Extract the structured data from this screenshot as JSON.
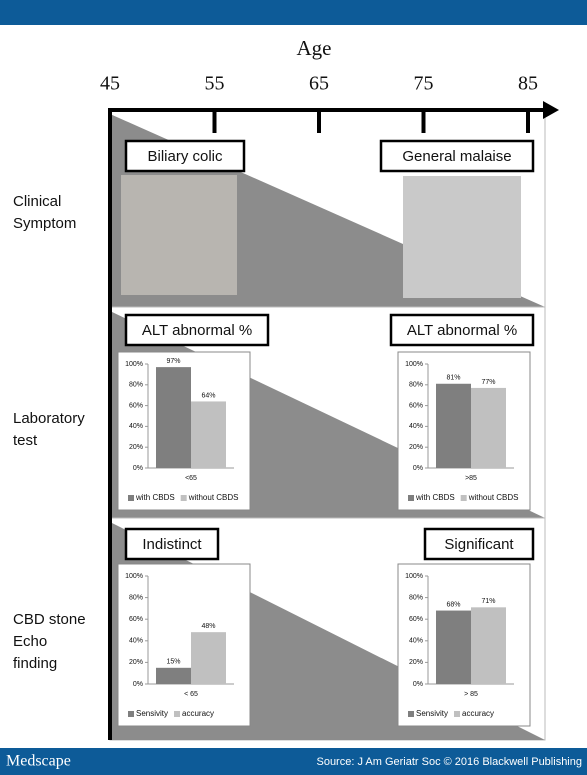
{
  "age_axis": {
    "title": "Age",
    "ticks": [
      45,
      55,
      65,
      75,
      85
    ]
  },
  "rows": [
    {
      "label": [
        "Clinical",
        "Symptom"
      ],
      "left": "Biliary colic",
      "right": "General malaise"
    },
    {
      "label": [
        "Laboratory",
        "test"
      ],
      "left": "ALT abnormal %",
      "right": "ALT abnormal %"
    },
    {
      "label": [
        "CBD stone",
        "Echo",
        "finding"
      ],
      "left": "Indistinct",
      "right": "Significant"
    }
  ],
  "footer": {
    "brand": "Medscape",
    "source": "Source: J Am Geriatr Soc © 2016 Blackwell Publishing"
  },
  "chart_data": [
    {
      "type": "bar",
      "categories": [
        "<65"
      ],
      "ylim": [
        0,
        100
      ],
      "yticks": [
        {
          "value": 0,
          "label": "0%"
        },
        {
          "value": 20,
          "label": "20%"
        },
        {
          "value": 40,
          "label": "40%"
        },
        {
          "value": 60,
          "label": "60%"
        },
        {
          "value": 80,
          "label": "80%"
        },
        {
          "value": 100,
          "label": "100%"
        }
      ],
      "series": [
        {
          "name": "with CBDS",
          "color": "#7f7f7f",
          "values": [
            97
          ],
          "value_labels": [
            "97%"
          ]
        },
        {
          "name": "without CBDS",
          "color": "#c0c0c0",
          "values": [
            64
          ],
          "value_labels": [
            "64%"
          ]
        }
      ]
    },
    {
      "type": "bar",
      "categories": [
        ">85"
      ],
      "ylim": [
        0,
        100
      ],
      "yticks": [
        {
          "value": 0,
          "label": "0%"
        },
        {
          "value": 20,
          "label": "20%"
        },
        {
          "value": 40,
          "label": "40%"
        },
        {
          "value": 60,
          "label": "60%"
        },
        {
          "value": 80,
          "label": "80%"
        },
        {
          "value": 100,
          "label": "100%"
        }
      ],
      "series": [
        {
          "name": "with CBDS",
          "color": "#7f7f7f",
          "values": [
            81
          ],
          "value_labels": [
            "81%"
          ]
        },
        {
          "name": "without CBDS",
          "color": "#c0c0c0",
          "values": [
            77
          ],
          "value_labels": [
            "77%"
          ]
        }
      ]
    },
    {
      "type": "bar",
      "categories": [
        "< 65"
      ],
      "ylim": [
        0,
        100
      ],
      "yticks": [
        {
          "value": 0,
          "label": "0%"
        },
        {
          "value": 20,
          "label": "20%"
        },
        {
          "value": 40,
          "label": "40%"
        },
        {
          "value": 60,
          "label": "60%"
        },
        {
          "value": 80,
          "label": "80%"
        },
        {
          "value": 100,
          "label": "100%"
        }
      ],
      "series": [
        {
          "name": "Sensivity",
          "color": "#7f7f7f",
          "values": [
            15
          ],
          "value_labels": [
            "15%"
          ]
        },
        {
          "name": "accuracy",
          "color": "#c0c0c0",
          "values": [
            48
          ],
          "value_labels": [
            "48%"
          ]
        }
      ]
    },
    {
      "type": "bar",
      "categories": [
        "> 85"
      ],
      "ylim": [
        0,
        100
      ],
      "yticks": [
        {
          "value": 0,
          "label": "0%"
        },
        {
          "value": 20,
          "label": "20%"
        },
        {
          "value": 40,
          "label": "40%"
        },
        {
          "value": 60,
          "label": "60%"
        },
        {
          "value": 80,
          "label": "80%"
        },
        {
          "value": 100,
          "label": "100%"
        }
      ],
      "series": [
        {
          "name": "Sensivity",
          "color": "#7f7f7f",
          "values": [
            68
          ],
          "value_labels": [
            "68%"
          ]
        },
        {
          "name": "accuracy",
          "color": "#c0c0c0",
          "values": [
            71
          ],
          "value_labels": [
            "71%"
          ]
        }
      ]
    }
  ]
}
